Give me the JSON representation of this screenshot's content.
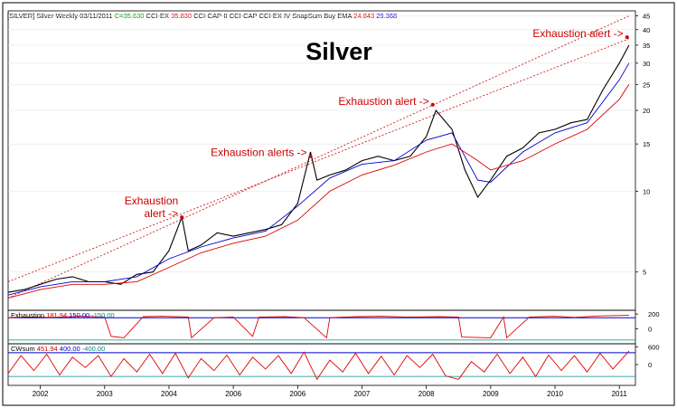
{
  "header": {
    "symbol": "[SILVER] Silver-Weekly",
    "date": "03/11/2011",
    "close": "C=35.630",
    "study1": "CCI-EX",
    "study1_val": "35.830",
    "study2": "CCI-CAP-II",
    "study3": "CCI-CAP",
    "study4": "CCI-EX IV",
    "study5": "SnapSum Buy",
    "study6": "EMA",
    "ema_val1": "24.843",
    "ema_val2": "29.368"
  },
  "chart_data": [
    {
      "type": "line",
      "subtype": "weekly price bars with moving averages, log scale",
      "title": "Silver",
      "x_ticks": [
        "2002",
        "2003",
        "2004",
        "2006",
        "2006",
        "2007",
        "2008",
        "2009",
        "2010",
        "2011"
      ],
      "y_ticks": [
        5,
        10,
        15,
        20,
        25,
        30,
        35,
        40,
        45
      ],
      "y_scale": "log",
      "ylim": [
        3.6,
        47
      ],
      "series": [
        {
          "color": "#000000",
          "x": [
            2001.5,
            2001.75,
            2002.0,
            2002.25,
            2002.5,
            2002.75,
            2003.0,
            2003.25,
            2003.5,
            2003.75,
            2004.0,
            2004.2,
            2004.3,
            2004.5,
            2004.75,
            2005.0,
            2005.25,
            2005.5,
            2005.75,
            2006.0,
            2006.2,
            2006.3,
            2006.5,
            2006.75,
            2007.0,
            2007.25,
            2007.5,
            2007.75,
            2008.0,
            2008.15,
            2008.4,
            2008.6,
            2008.8,
            2009.0,
            2009.25,
            2009.5,
            2009.75,
            2010.0,
            2010.25,
            2010.5,
            2010.75,
            2011.0,
            2011.15
          ],
          "values": [
            4.2,
            4.3,
            4.5,
            4.7,
            4.8,
            4.6,
            4.6,
            4.5,
            4.9,
            5.0,
            6.0,
            8.0,
            6.0,
            6.3,
            7.0,
            6.8,
            7.0,
            7.2,
            7.5,
            9.0,
            14.0,
            11.0,
            11.5,
            12.0,
            13.0,
            13.5,
            13.0,
            13.5,
            16.0,
            20.0,
            17.0,
            12.0,
            9.5,
            11.0,
            13.5,
            14.5,
            16.5,
            17.0,
            18.0,
            18.5,
            24.0,
            30.0,
            35.0
          ]
        },
        {
          "color": "#0000cc",
          "x": [
            2001.5,
            2002.0,
            2002.5,
            2003.0,
            2003.5,
            2004.0,
            2004.5,
            2005.0,
            2005.5,
            2006.0,
            2006.5,
            2007.0,
            2007.5,
            2008.0,
            2008.4,
            2008.8,
            2009.0,
            2009.5,
            2010.0,
            2010.5,
            2011.0,
            2011.15
          ],
          "values": [
            4.1,
            4.4,
            4.6,
            4.6,
            4.8,
            5.6,
            6.2,
            6.7,
            7.1,
            8.8,
            11.2,
            12.6,
            13.0,
            15.5,
            16.5,
            11.0,
            10.8,
            14.0,
            16.5,
            18.0,
            26.0,
            30.0
          ]
        },
        {
          "color": "#dd0000",
          "x": [
            2001.5,
            2002.0,
            2002.5,
            2003.0,
            2003.5,
            2004.0,
            2004.5,
            2005.0,
            2005.5,
            2006.0,
            2006.5,
            2007.0,
            2007.5,
            2008.0,
            2008.4,
            2008.8,
            2009.0,
            2009.5,
            2010.0,
            2010.5,
            2011.0,
            2011.15
          ],
          "values": [
            4.0,
            4.3,
            4.5,
            4.5,
            4.6,
            5.2,
            5.9,
            6.4,
            6.8,
            7.8,
            10.0,
            11.5,
            12.5,
            14.0,
            15.0,
            13.0,
            12.0,
            13.0,
            15.0,
            17.0,
            22.0,
            25.0
          ]
        }
      ],
      "trendlines": [
        {
          "color": "#cc0000",
          "style": "dotted",
          "x": [
            2001.5,
            2011.15
          ],
          "values": [
            4.0,
            45.0
          ]
        },
        {
          "color": "#cc0000",
          "style": "dotted",
          "x": [
            2001.5,
            2011.15
          ],
          "values": [
            4.6,
            37.0
          ]
        }
      ],
      "annotations": [
        {
          "lines": [
            "Exhaustion",
            "alert -> "
          ],
          "x": 2004.2,
          "y": 8.0
        },
        {
          "lines": [
            "Exhaustion alerts -> "
          ],
          "x": 2006.2,
          "y": 13.5
        },
        {
          "lines": [
            "Exhaustion alert -> "
          ],
          "x": 2008.1,
          "y": 21.0
        },
        {
          "lines": [
            "Exhaustion alert -> "
          ],
          "x": 2011.12,
          "y": 37.5
        }
      ]
    },
    {
      "type": "line",
      "title": "Exhaustion",
      "legend_values": [
        "181.94",
        "150.00",
        "-150.00"
      ],
      "legend_colors": [
        "#cc0000",
        "#0000cc",
        "#008888"
      ],
      "y_ticks": [
        0,
        200
      ],
      "ylim": [
        -200,
        250
      ],
      "reference_lines": [
        150,
        -150
      ],
      "series": [
        {
          "color": "#dd0000",
          "x": [
            2001.5,
            2001.8,
            2002.2,
            2002.6,
            2003.0,
            2003.1,
            2003.3,
            2003.6,
            2003.9,
            2004.3,
            2004.35,
            2004.7,
            2005.0,
            2005.3,
            2005.4,
            2005.8,
            2006.1,
            2006.45,
            2006.5,
            2006.9,
            2007.3,
            2007.7,
            2008.2,
            2008.5,
            2008.55,
            2009.0,
            2009.2,
            2009.25,
            2009.6,
            2010.0,
            2010.3,
            2010.7,
            2011.15
          ],
          "values": [
            150,
            160,
            155,
            170,
            160,
            -100,
            -120,
            165,
            170,
            160,
            -120,
            150,
            160,
            -100,
            160,
            165,
            150,
            -120,
            150,
            165,
            170,
            160,
            165,
            160,
            -110,
            -120,
            160,
            -120,
            160,
            170,
            155,
            175,
            182
          ]
        }
      ]
    },
    {
      "type": "line",
      "title": "CWsum",
      "legend_values": [
        "451.94",
        "400.00",
        "-400.00"
      ],
      "legend_colors": [
        "#cc0000",
        "#0000cc",
        "#008888"
      ],
      "y_ticks": [
        0,
        600
      ],
      "ylim": [
        -700,
        700
      ],
      "reference_lines": [
        400,
        -400
      ],
      "series": [
        {
          "color": "#dd0000",
          "x": [
            2001.5,
            2001.7,
            2001.9,
            2002.1,
            2002.3,
            2002.5,
            2002.7,
            2002.9,
            2003.1,
            2003.3,
            2003.5,
            2003.7,
            2003.9,
            2004.1,
            2004.3,
            2004.5,
            2004.7,
            2004.9,
            2005.1,
            2005.3,
            2005.5,
            2005.7,
            2005.9,
            2006.1,
            2006.3,
            2006.5,
            2006.7,
            2006.9,
            2007.1,
            2007.3,
            2007.5,
            2007.7,
            2007.9,
            2008.1,
            2008.3,
            2008.5,
            2008.7,
            2008.9,
            2009.1,
            2009.3,
            2009.5,
            2009.7,
            2009.9,
            2010.1,
            2010.3,
            2010.5,
            2010.7,
            2010.9,
            2011.15
          ],
          "values": [
            -300,
            300,
            -200,
            350,
            -350,
            250,
            -100,
            300,
            -400,
            200,
            -250,
            350,
            -300,
            380,
            -450,
            200,
            -200,
            320,
            -350,
            250,
            -150,
            300,
            -300,
            420,
            -500,
            150,
            -250,
            380,
            -300,
            280,
            -350,
            300,
            -100,
            350,
            -380,
            -500,
            100,
            -250,
            350,
            -300,
            250,
            -400,
            320,
            -200,
            300,
            -250,
            380,
            -150,
            452
          ]
        }
      ]
    }
  ]
}
